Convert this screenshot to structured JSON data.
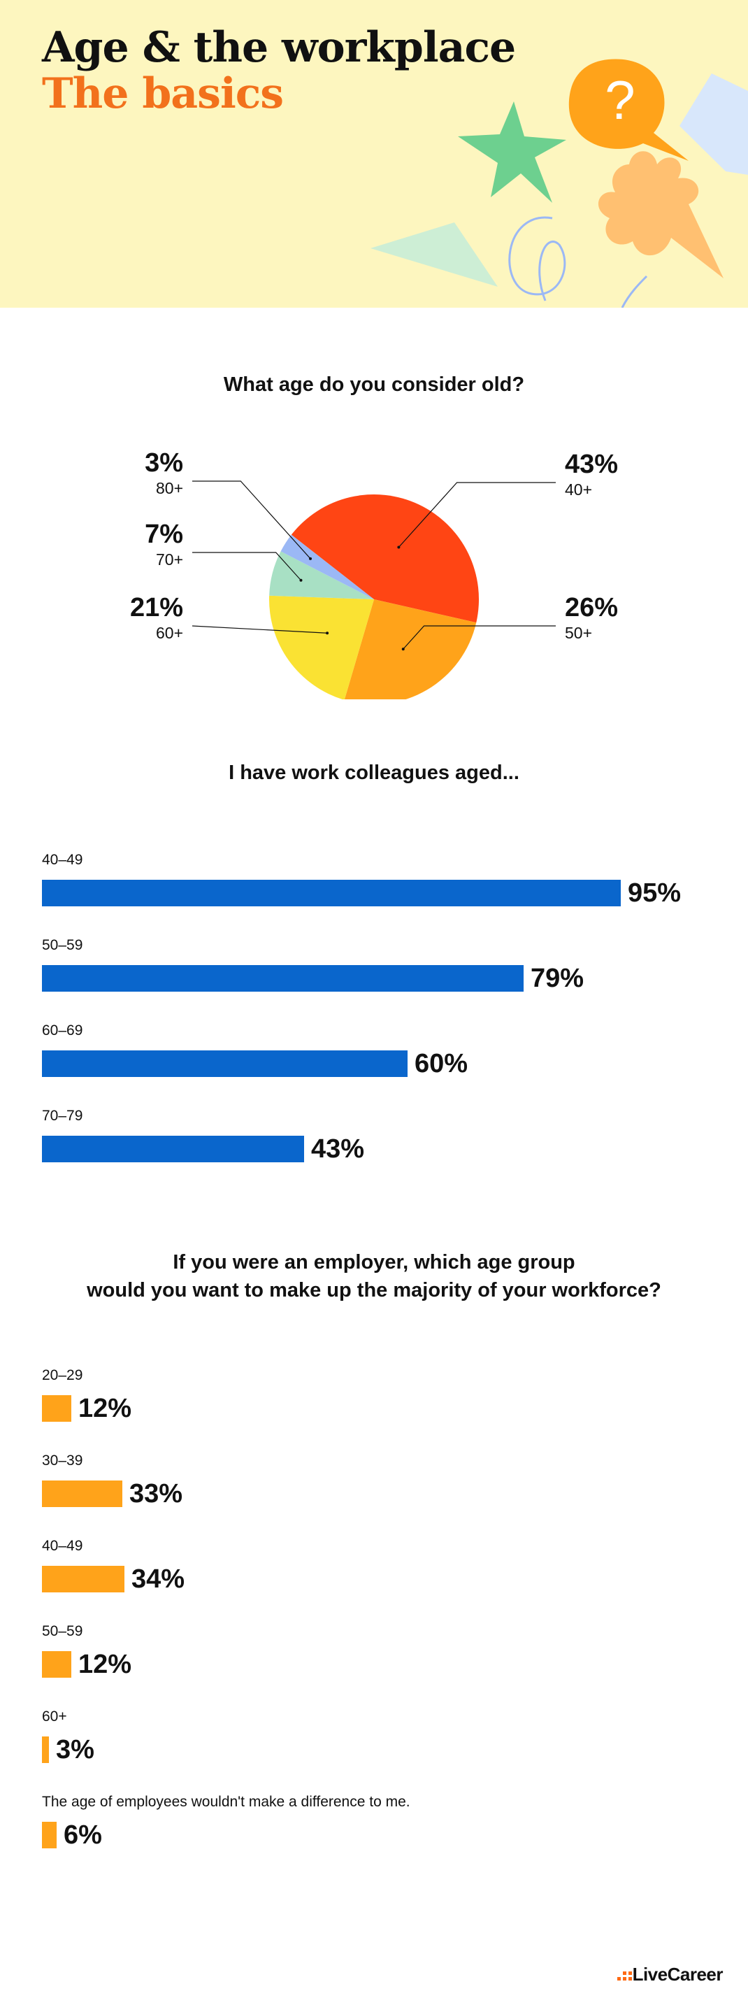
{
  "header": {
    "title": "Age & the workplace",
    "subtitle": "The basics"
  },
  "colors": {
    "header_bg": "#fdf6bf",
    "subtitle": "#f2711c",
    "blue_bar": "#0a66cc",
    "orange_bar": "#ffa31a"
  },
  "chart_data": [
    {
      "type": "pie",
      "title": "What age do you consider old?",
      "labels": [
        "40+",
        "50+",
        "60+",
        "70+",
        "80+"
      ],
      "values": [
        43,
        26,
        21,
        7,
        3
      ],
      "value_labels": [
        "43%",
        "26%",
        "21%",
        "7%",
        "3%"
      ],
      "colors": [
        "#ff4514",
        "#ffa31a",
        "#fae233",
        "#a8e0c4",
        "#9bb8f5"
      ]
    },
    {
      "type": "bar",
      "orientation": "horizontal",
      "title": "I have work colleagues aged...",
      "categories": [
        "40–49",
        "50–59",
        "60–69",
        "70–79"
      ],
      "values": [
        95,
        79,
        60,
        43
      ],
      "value_labels": [
        "95%",
        "79%",
        "60%",
        "43%"
      ],
      "color": "#0a66cc",
      "xlim": [
        0,
        100
      ]
    },
    {
      "type": "bar",
      "orientation": "horizontal",
      "title": "If you were an employer, which age group would you want to make up the majority of your workforce?",
      "title_lines": [
        "If you were an employer, which age group",
        "would you want to make up the majority of your workforce?"
      ],
      "categories": [
        "20–29",
        "30–39",
        "40–49",
        "50–59",
        "60+",
        "The age of employees wouldn't make a difference to me."
      ],
      "values": [
        12,
        33,
        34,
        12,
        3,
        6
      ],
      "value_labels": [
        "12%",
        "33%",
        "34%",
        "12%",
        "3%",
        "6%"
      ],
      "color": "#ffa31a",
      "xlim": [
        0,
        100
      ]
    }
  ],
  "footer": {
    "logo": "LiveCareer"
  }
}
